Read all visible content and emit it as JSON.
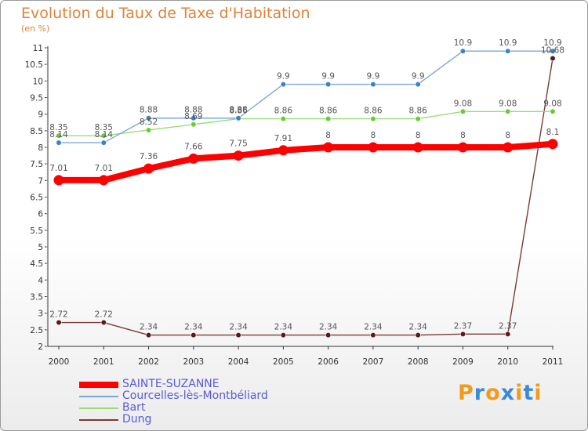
{
  "chart_data": {
    "type": "line",
    "title": "Evolution du Taux de Taxe d'Habitation",
    "subtitle": "(en %)",
    "xlabel": "",
    "ylabel": "",
    "x": [
      "2000",
      "2001",
      "2002",
      "2003",
      "2004",
      "2005",
      "2006",
      "2007",
      "2008",
      "2009",
      "2010",
      "2011"
    ],
    "ylim": [
      2,
      11
    ],
    "yticks": [
      "2",
      "2.5",
      "3",
      "3.5",
      "4",
      "4.5",
      "5",
      "5.5",
      "6",
      "6.5",
      "7",
      "7.5",
      "8",
      "8.5",
      "9",
      "9.5",
      "10",
      "10.5",
      "11"
    ],
    "grid": false,
    "legend_position": "bottom-left",
    "series": [
      {
        "name": "SAINTE-SUZANNE",
        "color": "#ff0000",
        "values": [
          7.01,
          7.01,
          7.36,
          7.66,
          7.75,
          7.91,
          8,
          8,
          8,
          8,
          8,
          8.1
        ],
        "labels": [
          "7.01",
          "7.01",
          "7.36",
          "7.66",
          "7.75",
          "7.91",
          "8",
          "8",
          "8",
          "8",
          "8",
          "8.1"
        ]
      },
      {
        "name": "Courcelles-lès-Montbéliard",
        "color": "#7aa7d8",
        "marker": "#3a82c8",
        "values": [
          8.14,
          8.14,
          8.88,
          8.88,
          8.88,
          9.9,
          9.9,
          9.9,
          9.9,
          10.9,
          10.9,
          10.9
        ],
        "labels": [
          "8.14",
          "8.14",
          "8.88",
          "8.88",
          "8.88",
          "9.9",
          "9.9",
          "9.9",
          "9.9",
          "10.9",
          "10.9",
          "10.9"
        ]
      },
      {
        "name": "Bart",
        "color": "#99dd77",
        "marker": "#66cc33",
        "values": [
          8.35,
          8.35,
          8.52,
          8.69,
          8.86,
          8.86,
          8.86,
          8.86,
          8.86,
          9.08,
          9.08,
          9.08
        ],
        "labels": [
          "8.35",
          "8.35",
          "8.52",
          "8.69",
          "8.86",
          "8.86",
          "8.86",
          "8.86",
          "8.86",
          "9.08",
          "9.08",
          "9.08"
        ]
      },
      {
        "name": "Dung",
        "color": "#7a3a3a",
        "marker": "#5a1a1a",
        "values": [
          2.72,
          2.72,
          2.34,
          2.34,
          2.34,
          2.34,
          2.34,
          2.34,
          2.34,
          2.37,
          2.37,
          10.68
        ],
        "labels": [
          "2.72",
          "2.72",
          "2.34",
          "2.34",
          "2.34",
          "2.34",
          "2.34",
          "2.34",
          "2.34",
          "2.37",
          "2.37",
          "10.68"
        ]
      }
    ]
  },
  "logo": {
    "text": "Proxiti",
    "letters": [
      "P",
      "r",
      "o",
      "x",
      "i",
      "t",
      "i"
    ],
    "colors": [
      "#f39a1a",
      "#3a8ad8",
      "#f39a1a",
      "#3a8ad8",
      "#f39a1a",
      "#3a8ad8",
      "#f39a1a"
    ]
  }
}
